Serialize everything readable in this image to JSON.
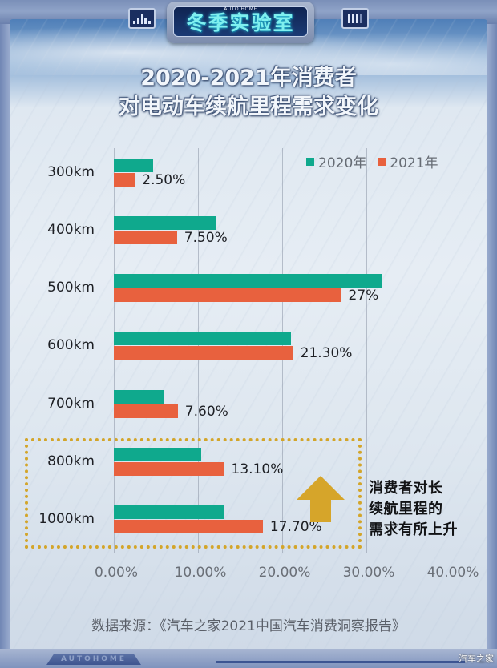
{
  "header": {
    "badge_title": "冬季实验室",
    "badge_brand": "AUTO HOME",
    "title_line1": "2020-2021年消费者",
    "title_line2": "对电动车续航里程需求变化"
  },
  "legend": [
    {
      "label": "2020年",
      "color": "#0fa98d"
    },
    {
      "label": "2021年",
      "color": "#e8613e"
    }
  ],
  "chart_data": {
    "type": "bar",
    "orientation": "horizontal",
    "title": "2020-2021年消费者对电动车续航里程需求变化",
    "categories": [
      "300km",
      "400km",
      "500km",
      "600km",
      "700km",
      "800km",
      "1000km"
    ],
    "series": [
      {
        "name": "2020年",
        "color": "#0fa98d",
        "values": [
          4.7,
          12.1,
          31.8,
          21.0,
          6.0,
          10.4,
          13.1
        ]
      },
      {
        "name": "2021年",
        "color": "#e8613e",
        "values": [
          2.5,
          7.5,
          27.0,
          21.3,
          7.6,
          13.1,
          17.7
        ]
      }
    ],
    "data_labels_2021": [
      "2.50%",
      "7.50%",
      "27%",
      "21.30%",
      "7.60%",
      "13.10%",
      "17.70%"
    ],
    "xlabel": "",
    "ylabel": "",
    "xlim": [
      0,
      40
    ],
    "xticks": [
      "0.00%",
      "10.00%",
      "20.00%",
      "30.00%",
      "40.00%"
    ],
    "grid": "vertical",
    "legend_position": "top-right",
    "annotation": "消费者对长续航里程的需求有所上升"
  },
  "annotation": {
    "line1": "消费者对长",
    "line2": "续航里程的",
    "line3": "需求有所上升"
  },
  "footer": {
    "source": "数据来源：《汽车之家2021中国汽车消费洞察报告》",
    "brand": "AUTOHOME",
    "watermark": "汽车之家"
  }
}
